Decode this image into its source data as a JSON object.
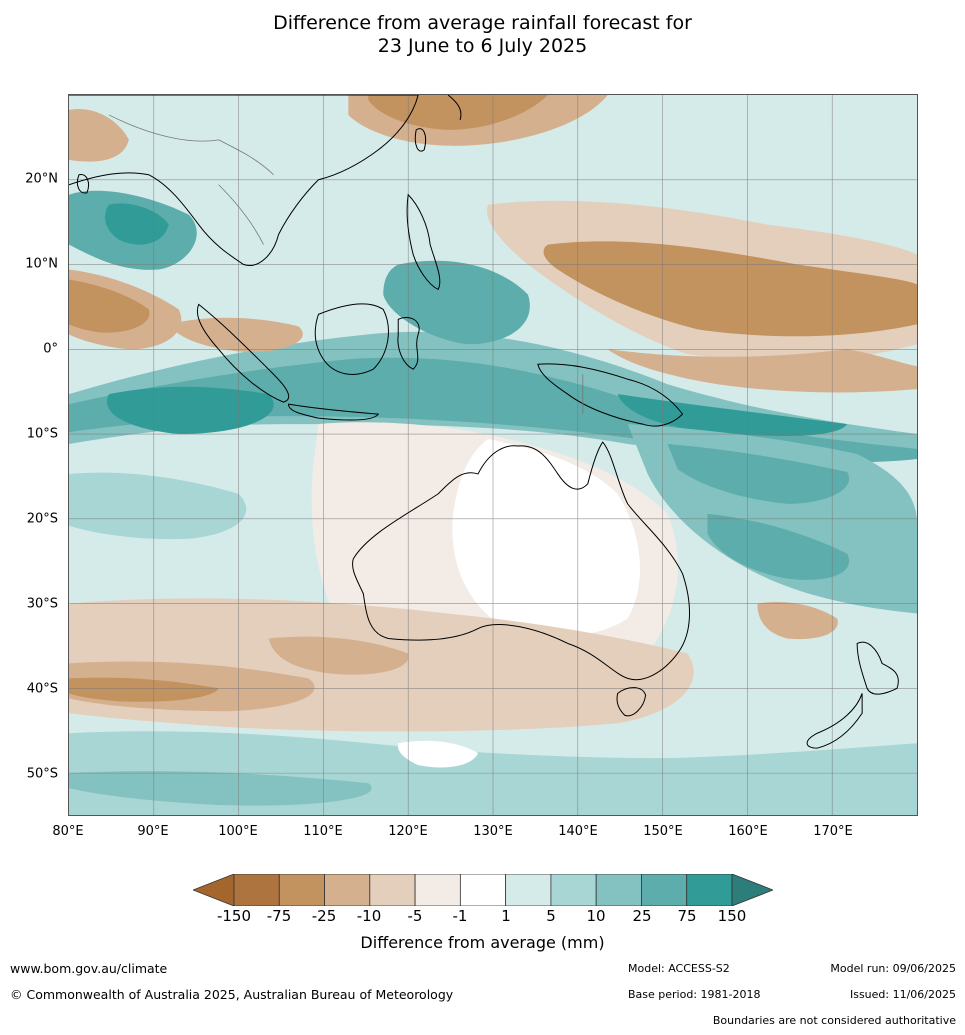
{
  "title_line1": "Difference from average rainfall forecast for",
  "title_line2": "23 June to 6 July 2025",
  "lat_labels": [
    "20°N",
    "10°N",
    "0°",
    "10°S",
    "20°S",
    "30°S",
    "40°S",
    "50°S"
  ],
  "lon_labels": [
    "80°E",
    "90°E",
    "100°E",
    "110°E",
    "120°E",
    "130°E",
    "140°E",
    "150°E",
    "160°E",
    "170°E"
  ],
  "legend": {
    "title": "Difference from average (mm)",
    "ticks": [
      "-150",
      "-75",
      "-25",
      "-10",
      "-5",
      "-1",
      "1",
      "5",
      "10",
      "25",
      "75",
      "150"
    ],
    "colors": [
      "#a5662e",
      "#ae743f",
      "#c2925f",
      "#d5b08f",
      "#e4cfbc",
      "#f3ebe5",
      "#ffffff",
      "#d5ebea",
      "#a8d6d4",
      "#83c2c0",
      "#5cadab",
      "#319b98",
      "#2d7d7a"
    ]
  },
  "footer": {
    "website": "www.bom.gov.au/climate",
    "copyright": "© Commonwealth of Australia 2025, Australian Bureau of Meteorology",
    "model": "Model: ACCESS-S2",
    "base_period": "Base period: 1981-2018",
    "model_run": "Model run: 09/06/2025",
    "issued": "Issued: 11/06/2025",
    "disclaimer": "Boundaries are not considered authoritative"
  }
}
